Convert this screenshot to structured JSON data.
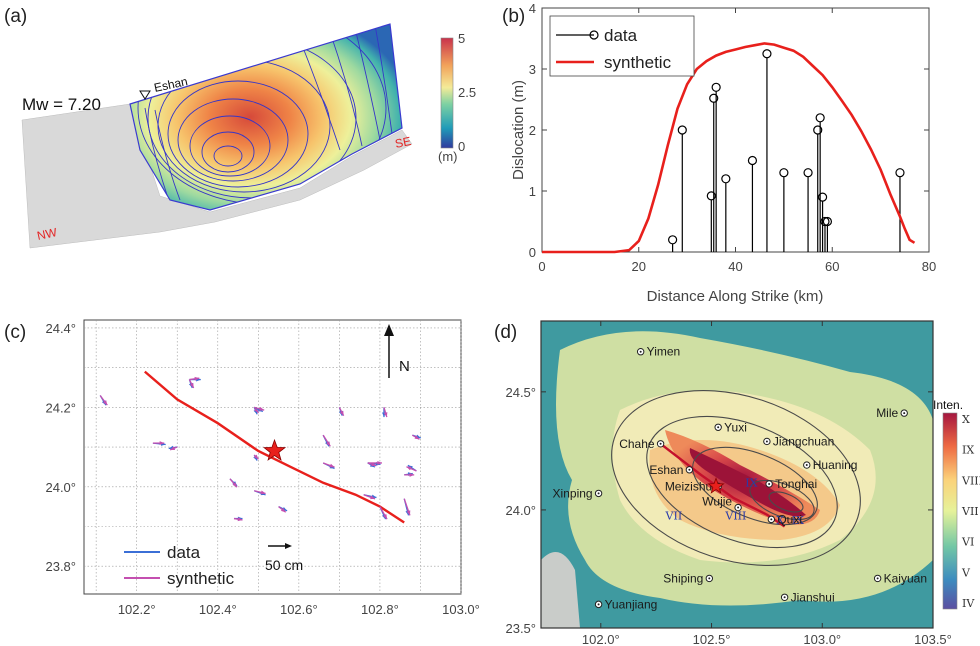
{
  "panels": {
    "a": {
      "label": "(a)",
      "magnitude": "Mw = 7.20",
      "station": "Eshan",
      "end_left": "NW",
      "end_right": "SE",
      "colorbar": {
        "ticks": [
          "5",
          "2.5",
          "0"
        ],
        "unit": "(m)",
        "range": [
          0,
          5
        ]
      }
    },
    "b": {
      "label": "(b)",
      "xlabel": "Distance Along Strike (km)",
      "ylabel": "Dislocation (m)",
      "legend": [
        "data",
        "synthetic"
      ]
    },
    "c": {
      "label": "(c)",
      "north": "N",
      "scale_label": "50 cm",
      "legend": [
        "data",
        "synthetic"
      ]
    },
    "d": {
      "label": "(d)",
      "colorbar_title": "Inten.",
      "colorbar_ticks": [
        "X",
        "IX",
        "VIII",
        "VII",
        "VI",
        "V",
        "IV"
      ],
      "cities": [
        {
          "name": "Yimen",
          "lon": 102.18,
          "lat": 24.67
        },
        {
          "name": "Mile",
          "lon": 103.37,
          "lat": 24.41
        },
        {
          "name": "Yuxi",
          "lon": 102.53,
          "lat": 24.35
        },
        {
          "name": "Jiangchuan",
          "lon": 102.75,
          "lat": 24.29
        },
        {
          "name": "Chahe",
          "lon": 102.27,
          "lat": 24.28
        },
        {
          "name": "Huaning",
          "lon": 102.93,
          "lat": 24.19
        },
        {
          "name": "Eshan",
          "lon": 102.4,
          "lat": 24.17
        },
        {
          "name": "Tonghai",
          "lon": 102.76,
          "lat": 24.11
        },
        {
          "name": "Meizishu",
          "lon": 102.53,
          "lat": 24.1
        },
        {
          "name": "Xinping",
          "lon": 101.99,
          "lat": 24.07
        },
        {
          "name": "Wujie",
          "lon": 102.62,
          "lat": 24.01
        },
        {
          "name": "Quxi",
          "lon": 102.77,
          "lat": 23.96
        },
        {
          "name": "Shiping",
          "lon": 102.49,
          "lat": 23.71
        },
        {
          "name": "Kaiyuan",
          "lon": 103.25,
          "lat": 23.71
        },
        {
          "name": "Jianshui",
          "lon": 102.83,
          "lat": 23.63
        },
        {
          "name": "Yuanjiang",
          "lon": 101.99,
          "lat": 23.6
        }
      ],
      "zone_labels": [
        {
          "text": "IX",
          "lon": 102.68,
          "lat": 24.1
        },
        {
          "text": "VII",
          "lon": 102.33,
          "lat": 23.96
        },
        {
          "text": "VIII",
          "lon": 102.61,
          "lat": 23.96
        },
        {
          "text": "X",
          "lon": 102.81,
          "lat": 23.94
        },
        {
          "text": "IX",
          "lon": 102.89,
          "lat": 23.94
        }
      ]
    }
  },
  "chart_data": [
    {
      "type": "heatmap",
      "title": "",
      "description_values": "slip distribution on fault plane with contours",
      "colorbar_range": [
        0,
        5
      ]
    },
    {
      "type": "line",
      "xlim": [
        0,
        80
      ],
      "ylim": [
        0,
        4
      ],
      "xticks": [
        0,
        20,
        40,
        60,
        80
      ],
      "yticks": [
        0,
        1,
        2,
        3,
        4
      ],
      "series": [
        {
          "name": "data",
          "kind": "stem",
          "color": "#000000",
          "x": [
            27,
            29,
            35,
            35.5,
            36,
            38,
            43.5,
            46.5,
            50,
            55,
            57,
            57.5,
            58,
            58.5,
            59,
            74
          ],
          "y": [
            0.2,
            2.0,
            0.92,
            2.52,
            2.7,
            1.2,
            1.5,
            3.25,
            1.3,
            1.3,
            2.0,
            2.2,
            0.9,
            0.5,
            0.5,
            1.3
          ]
        },
        {
          "name": "synthetic",
          "kind": "line",
          "color": "#e8201c",
          "x": [
            0,
            15,
            18,
            20,
            22,
            24,
            26,
            28,
            30,
            32,
            34,
            36,
            38,
            40,
            42,
            44,
            46,
            48,
            50,
            52,
            54,
            56,
            58,
            60,
            62,
            64,
            66,
            68,
            70,
            72,
            74,
            75,
            76,
            77
          ],
          "y": [
            0,
            0,
            0.03,
            0.18,
            0.55,
            1.1,
            1.75,
            2.35,
            2.75,
            3.0,
            3.13,
            3.22,
            3.28,
            3.32,
            3.36,
            3.39,
            3.42,
            3.4,
            3.35,
            3.3,
            3.2,
            3.05,
            2.9,
            2.7,
            2.48,
            2.25,
            1.98,
            1.68,
            1.35,
            0.95,
            0.58,
            0.38,
            0.2,
            0.15
          ]
        }
      ]
    },
    {
      "type": "scatter",
      "xlim": [
        102.0,
        103.0
      ],
      "ylim": [
        23.7,
        24.4
      ],
      "xticks": [
        "102.2°",
        "102.4°",
        "102.6°",
        "102.8°",
        "103.0°"
      ],
      "xtick_values": [
        102.2,
        102.4,
        102.6,
        102.8,
        103.0
      ],
      "yticks": [
        "23.8°",
        "24.0°",
        "24.2°",
        "24.4°"
      ],
      "ytick_values": [
        23.8,
        24.0,
        24.2,
        24.4
      ],
      "epicenter": {
        "lon": 102.54,
        "lat": 24.09
      },
      "fault": {
        "lon": [
          102.22,
          102.3,
          102.4,
          102.5,
          102.58,
          102.66,
          102.74,
          102.8,
          102.86
        ],
        "lat": [
          24.29,
          24.22,
          24.16,
          24.09,
          24.05,
          24.01,
          23.98,
          23.95,
          23.91
        ]
      },
      "vectors": [
        {
          "lon": 102.11,
          "lat": 24.23,
          "data": [
            0.04,
            -0.07
          ],
          "syn": [
            0.05,
            -0.07
          ]
        },
        {
          "lon": 102.33,
          "lat": 24.27,
          "data": [
            0.08,
            0.0
          ],
          "syn": [
            0.07,
            0.01
          ]
        },
        {
          "lon": 102.33,
          "lat": 24.27,
          "data": [
            0.02,
            -0.06
          ],
          "syn": [
            0.03,
            -0.06
          ]
        },
        {
          "lon": 102.24,
          "lat": 24.11,
          "data": [
            0.09,
            -0.01
          ],
          "syn": [
            0.08,
            0.0
          ]
        },
        {
          "lon": 102.3,
          "lat": 24.1,
          "data": [
            -0.06,
            -0.01
          ],
          "syn": [
            -0.05,
            -0.02
          ]
        },
        {
          "lon": 102.49,
          "lat": 24.2,
          "data": [
            0.02,
            -0.05
          ],
          "syn": [
            0.03,
            -0.04
          ]
        },
        {
          "lon": 102.49,
          "lat": 24.2,
          "data": [
            0.06,
            -0.03
          ],
          "syn": [
            0.07,
            -0.02
          ]
        },
        {
          "lon": 102.49,
          "lat": 24.08,
          "data": [
            0.02,
            -0.04
          ],
          "syn": [
            0.03,
            -0.03
          ]
        },
        {
          "lon": 102.43,
          "lat": 24.02,
          "data": [
            0.05,
            -0.05
          ],
          "syn": [
            0.05,
            -0.06
          ]
        },
        {
          "lon": 102.49,
          "lat": 23.99,
          "data": [
            0.08,
            -0.03
          ],
          "syn": [
            0.08,
            -0.02
          ]
        },
        {
          "lon": 102.44,
          "lat": 23.92,
          "data": [
            0.06,
            0.0
          ],
          "syn": [
            0.06,
            -0.01
          ]
        },
        {
          "lon": 102.55,
          "lat": 23.95,
          "data": [
            0.06,
            -0.03
          ],
          "syn": [
            0.05,
            -0.04
          ]
        },
        {
          "lon": 102.66,
          "lat": 24.13,
          "data": [
            0.04,
            -0.08
          ],
          "syn": [
            0.05,
            -0.08
          ]
        },
        {
          "lon": 102.66,
          "lat": 24.06,
          "data": [
            0.08,
            -0.04
          ],
          "syn": [
            0.08,
            -0.03
          ]
        },
        {
          "lon": 102.7,
          "lat": 24.2,
          "data": [
            0.02,
            -0.06
          ],
          "syn": [
            0.03,
            -0.06
          ]
        },
        {
          "lon": 102.77,
          "lat": 24.06,
          "data": [
            0.09,
            -0.01
          ],
          "syn": [
            0.1,
            0.0
          ]
        },
        {
          "lon": 102.77,
          "lat": 24.06,
          "data": [
            0.05,
            -0.03
          ],
          "syn": [
            0.06,
            -0.02
          ]
        },
        {
          "lon": 102.76,
          "lat": 23.98,
          "data": [
            0.09,
            -0.02
          ],
          "syn": [
            0.08,
            -0.03
          ]
        },
        {
          "lon": 102.8,
          "lat": 23.95,
          "data": [
            0.04,
            -0.09
          ],
          "syn": [
            0.05,
            -0.09
          ]
        },
        {
          "lon": 102.81,
          "lat": 24.2,
          "data": [
            0.0,
            -0.07
          ],
          "syn": [
            0.02,
            -0.07
          ]
        },
        {
          "lon": 102.88,
          "lat": 24.13,
          "data": [
            0.06,
            -0.02
          ],
          "syn": [
            0.05,
            -0.03
          ]
        },
        {
          "lon": 102.86,
          "lat": 24.03,
          "data": [
            0.06,
            0.01
          ],
          "syn": [
            0.07,
            0.0
          ]
        },
        {
          "lon": 102.86,
          "lat": 23.97,
          "data": [
            0.03,
            -0.12
          ],
          "syn": [
            0.04,
            -0.12
          ]
        },
        {
          "lon": 102.89,
          "lat": 24.04,
          "data": [
            -0.06,
            0.04
          ],
          "syn": [
            -0.07,
            0.03
          ]
        }
      ]
    },
    {
      "type": "heatmap",
      "xlim": [
        101.7,
        103.5
      ],
      "ylim": [
        23.5,
        24.75
      ],
      "xticks": [
        "102.0°",
        "102.5°",
        "103.0°",
        "103.5°"
      ],
      "xtick_values": [
        102.0,
        102.5,
        103.0,
        103.5
      ],
      "yticks": [
        "23.5°",
        "24.0°",
        "24.5°"
      ],
      "ytick_values": [
        23.5,
        24.0,
        24.5
      ],
      "epicenter": {
        "lon": 102.52,
        "lat": 24.1
      }
    }
  ]
}
